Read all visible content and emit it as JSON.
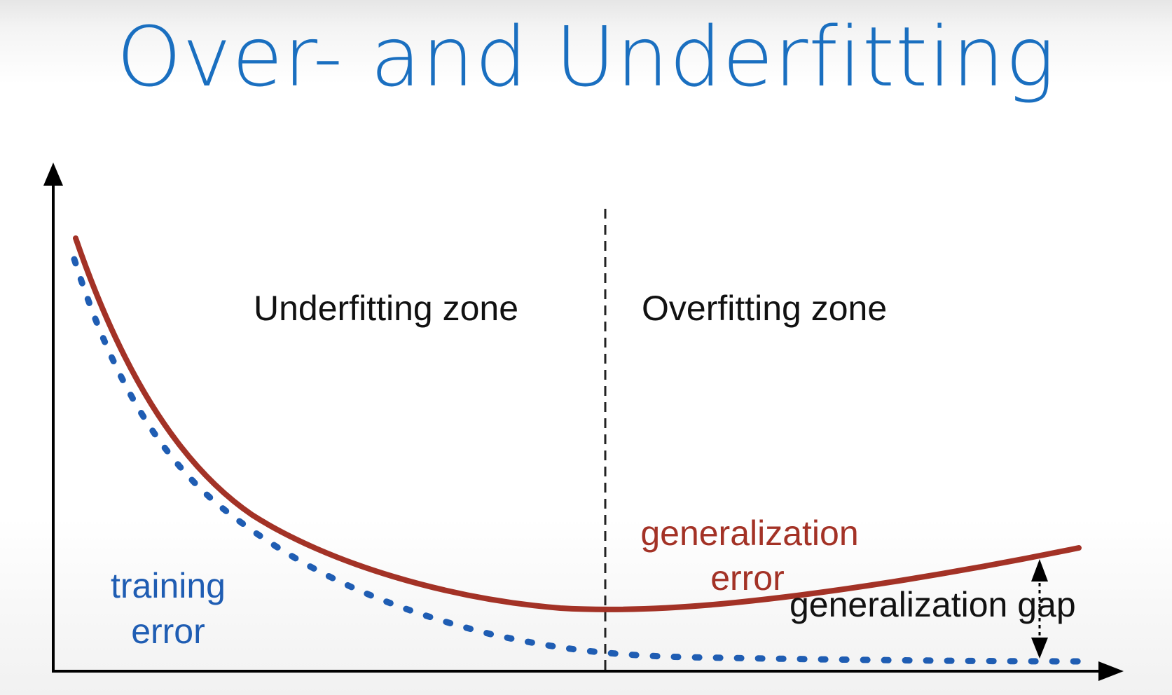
{
  "slide": {
    "title": "Over- and Underfitting"
  },
  "diagram": {
    "zones": {
      "underfitting": "Underfitting zone",
      "overfitting": "Overfitting zone"
    },
    "training_error": {
      "line1": "training",
      "line2": "error",
      "color": "#1f5db3"
    },
    "generalization_error": {
      "line1": "generalization",
      "line2": "error",
      "color": "#a33226"
    },
    "generalization_gap": {
      "label": "generalization gap"
    }
  }
}
